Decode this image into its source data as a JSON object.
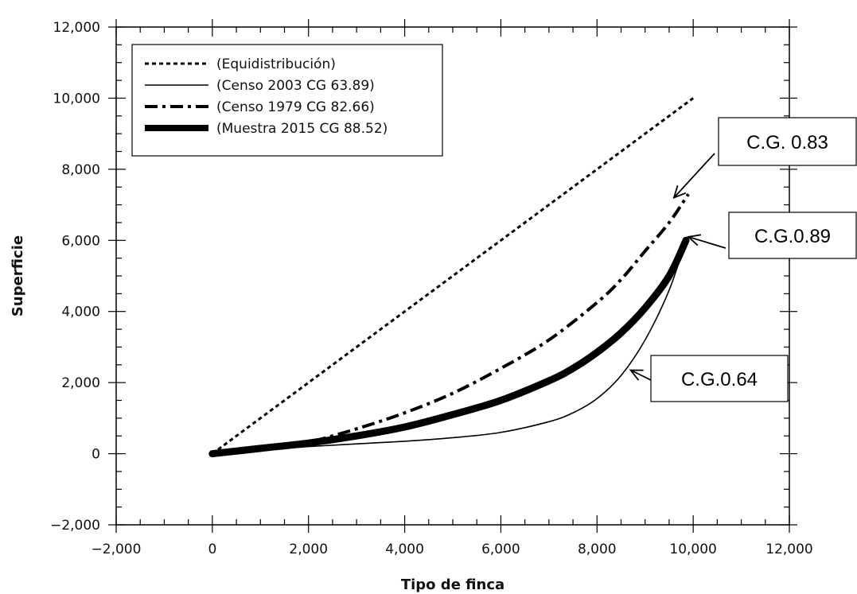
{
  "chart_data": {
    "type": "line",
    "title": "",
    "xlabel": "Tipo de finca",
    "ylabel": "Superficie",
    "xlim": [
      -2000,
      12000
    ],
    "ylim": [
      -2000,
      12000
    ],
    "xticks": [
      -2000,
      0,
      2000,
      4000,
      6000,
      8000,
      10000,
      12000
    ],
    "yticks": [
      -2000,
      0,
      2000,
      4000,
      6000,
      8000,
      10000,
      12000
    ],
    "xtick_labels": [
      "−2,000",
      "0",
      "2,000",
      "4,000",
      "6,000",
      "8,000",
      "10,000",
      "12,000"
    ],
    "ytick_labels": [
      "−2,000",
      "0",
      "2,000",
      "4,000",
      "6,000",
      "8,000",
      "10,000",
      "12,000"
    ],
    "grid": false,
    "legend_position": "top-left",
    "series": [
      {
        "name": "(Equidistribución)",
        "style": "dotted",
        "x": [
          0,
          10000
        ],
        "y": [
          0,
          10000
        ]
      },
      {
        "name": "(Censo 2003 CG 63.89)",
        "style": "thin",
        "x": [
          0,
          2000,
          4000,
          5000,
          6000,
          7000,
          7500,
          8000,
          8500,
          9000,
          9500,
          9850
        ],
        "y": [
          0,
          200,
          350,
          450,
          600,
          900,
          1150,
          1550,
          2200,
          3200,
          4600,
          6000
        ]
      },
      {
        "name": "(Censo 1979 CG 82.66)",
        "style": "dashdot",
        "x": [
          0,
          1000,
          2000,
          3000,
          4000,
          5000,
          6000,
          7000,
          8000,
          8500,
          9000,
          9500,
          9900
        ],
        "y": [
          0,
          130,
          330,
          700,
          1150,
          1700,
          2400,
          3200,
          4250,
          4900,
          5700,
          6500,
          7300
        ]
      },
      {
        "name": "(Muestra 2015 CG 88.52)",
        "style": "thick",
        "x": [
          0,
          1000,
          2000,
          3000,
          4000,
          5000,
          6000,
          7000,
          7500,
          8000,
          8500,
          9000,
          9500,
          9850
        ],
        "y": [
          0,
          150,
          300,
          500,
          750,
          1100,
          1500,
          2050,
          2400,
          2850,
          3400,
          4100,
          5000,
          6000
        ]
      }
    ],
    "annotations": [
      {
        "text": "C.G. 0.83",
        "target_x": 9600,
        "target_y": 7200
      },
      {
        "text": "C.G.0.89",
        "target_x": 9900,
        "target_y": 6100
      },
      {
        "text": "C.G.0.64",
        "target_x": 8700,
        "target_y": 2350
      }
    ]
  }
}
